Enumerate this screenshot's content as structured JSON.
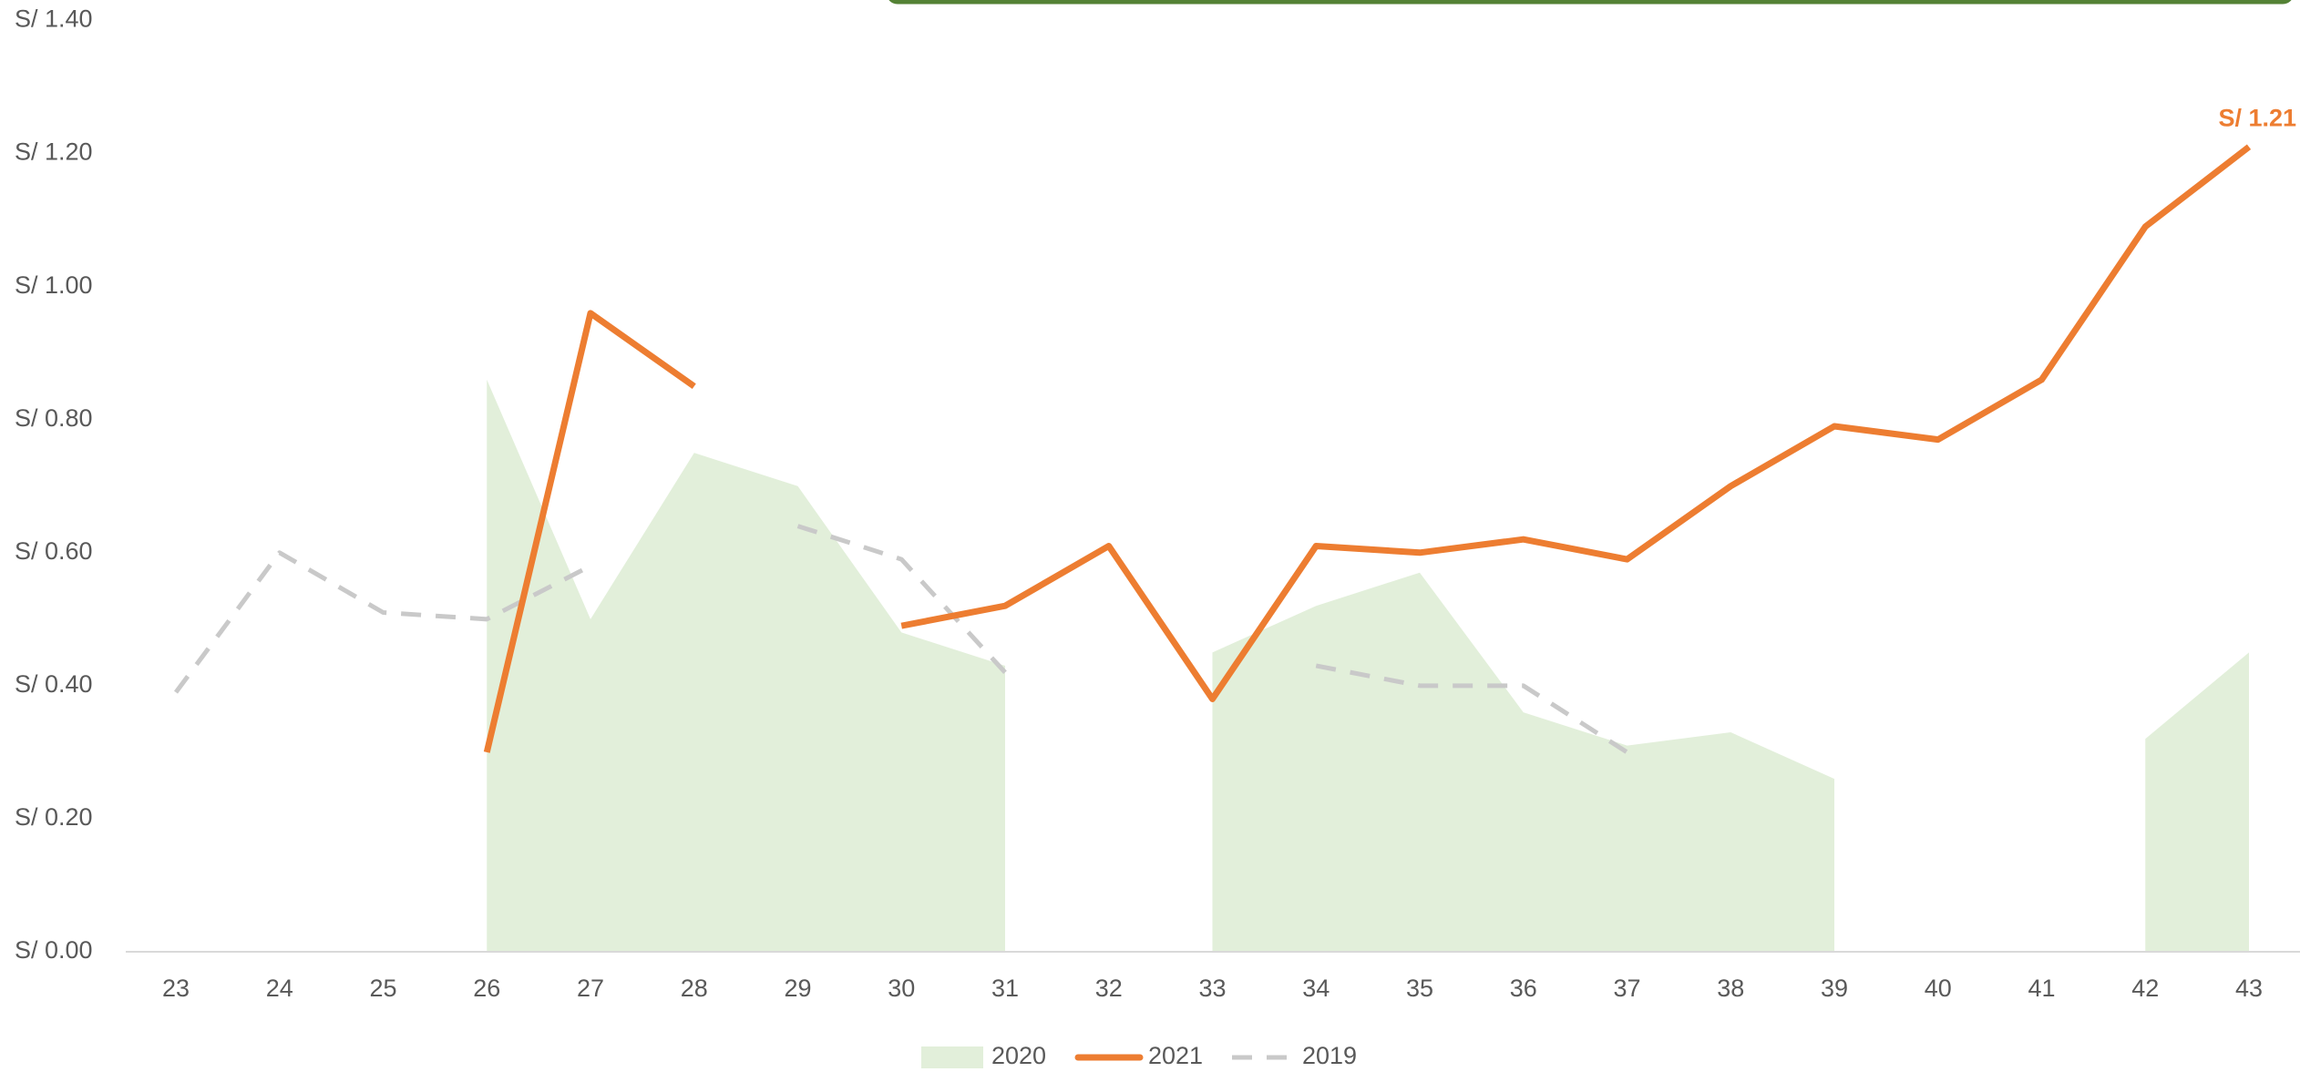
{
  "chart_data": {
    "type": "line",
    "categories": [
      "23",
      "24",
      "25",
      "26",
      "27",
      "28",
      "29",
      "30",
      "31",
      "32",
      "33",
      "34",
      "35",
      "36",
      "37",
      "38",
      "39",
      "40",
      "41",
      "42",
      "43"
    ],
    "series": [
      {
        "name": "2020",
        "kind": "area",
        "color": "#e2efda",
        "values": [
          null,
          null,
          null,
          0.86,
          0.5,
          0.75,
          0.7,
          0.48,
          0.43,
          null,
          0.45,
          0.52,
          0.57,
          0.36,
          0.31,
          0.33,
          0.26,
          null,
          null,
          0.32,
          0.45
        ]
      },
      {
        "name": "2021",
        "kind": "line",
        "color": "#ed7d31",
        "values": [
          null,
          null,
          null,
          0.3,
          0.96,
          0.85,
          null,
          0.49,
          0.52,
          0.61,
          0.38,
          0.61,
          0.6,
          0.62,
          0.59,
          0.7,
          0.79,
          0.77,
          0.86,
          1.09,
          1.21
        ],
        "value_labels": [
          null,
          null,
          null,
          null,
          null,
          null,
          null,
          null,
          null,
          null,
          null,
          null,
          null,
          null,
          null,
          null,
          null,
          null,
          null,
          null,
          "S/ 1.21"
        ]
      },
      {
        "name": "2019",
        "kind": "dashed",
        "color": "#c9c9c9",
        "values": [
          0.39,
          0.6,
          0.51,
          0.5,
          0.58,
          null,
          0.64,
          0.59,
          0.42,
          null,
          null,
          0.43,
          0.4,
          0.4,
          0.3,
          null,
          null,
          null,
          null,
          null,
          null
        ]
      }
    ],
    "ylim": [
      0,
      1.4
    ],
    "yticks": [
      {
        "value": 0,
        "label": "S/ 0.00"
      },
      {
        "value": 0.2,
        "label": "S/ 0.20"
      },
      {
        "value": 0.4,
        "label": "S/ 0.40"
      },
      {
        "value": 0.6,
        "label": "S/ 0.60"
      },
      {
        "value": 0.8,
        "label": "S/ 0.80"
      },
      {
        "value": 1.0,
        "label": "S/ 1.00"
      },
      {
        "value": 1.2,
        "label": "S/ 1.20"
      },
      {
        "value": 1.4,
        "label": "S/ 1.40"
      }
    ],
    "grid": false,
    "legend": "bottom"
  }
}
